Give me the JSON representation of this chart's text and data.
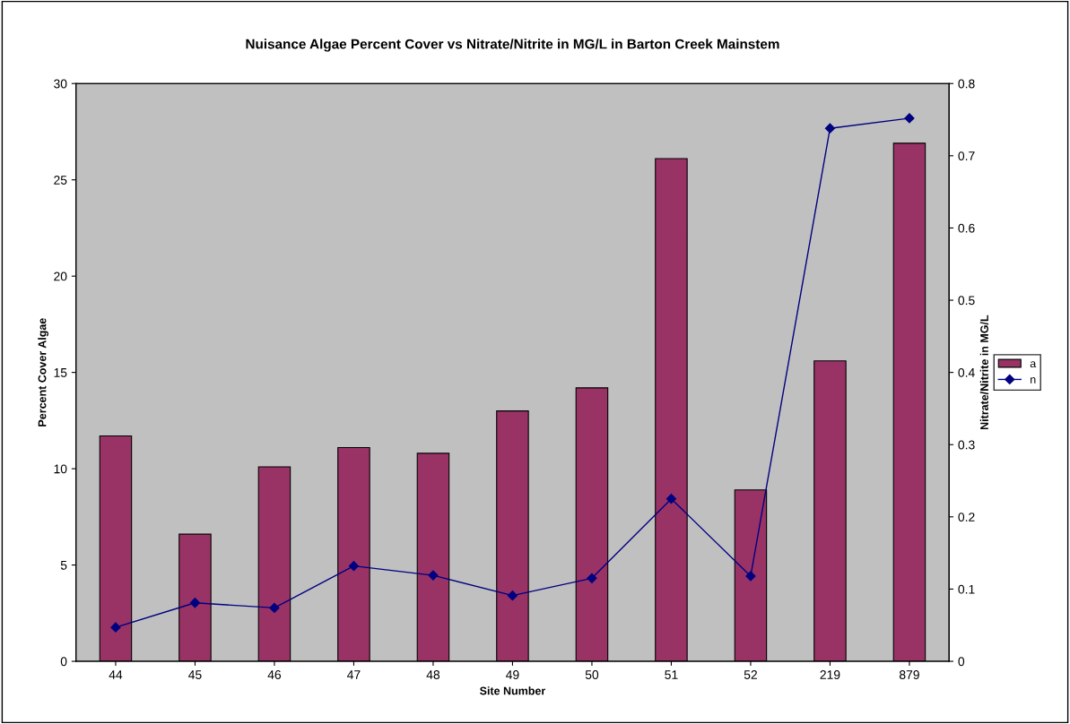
{
  "chart_data": {
    "type": "bar",
    "title": "Nuisance Algae Percent Cover vs Nitrate/Nitrite in MG/L in Barton Creek Mainstem",
    "xlabel": "Site Number",
    "ylabel": "Percent Cover Algae",
    "y2label": "Nitrate/Nitrite in MG/L",
    "categories": [
      "44",
      "45",
      "46",
      "47",
      "48",
      "49",
      "50",
      "51",
      "52",
      "219",
      "879"
    ],
    "series": [
      {
        "name": "a",
        "color": "#993366",
        "values": [
          11.7,
          6.6,
          10.1,
          11.1,
          10.8,
          13.0,
          14.2,
          26.1,
          8.9,
          15.6,
          26.9
        ]
      },
      {
        "name": "n",
        "type": "line",
        "axis": "y2",
        "color": "#000080",
        "marker": "diamond",
        "values": [
          0.047,
          0.081,
          0.074,
          0.132,
          0.119,
          0.091,
          0.115,
          0.225,
          0.118,
          0.738,
          0.752
        ]
      }
    ],
    "ylim": [
      0,
      30
    ],
    "yticks": [
      0,
      5,
      10,
      15,
      20,
      25,
      30
    ],
    "y2lim": [
      0,
      0.8
    ],
    "y2ticks": [
      0,
      0.1,
      0.2,
      0.3,
      0.4,
      0.5,
      0.6,
      0.7,
      0.8
    ],
    "grid": false,
    "legend": "right"
  }
}
